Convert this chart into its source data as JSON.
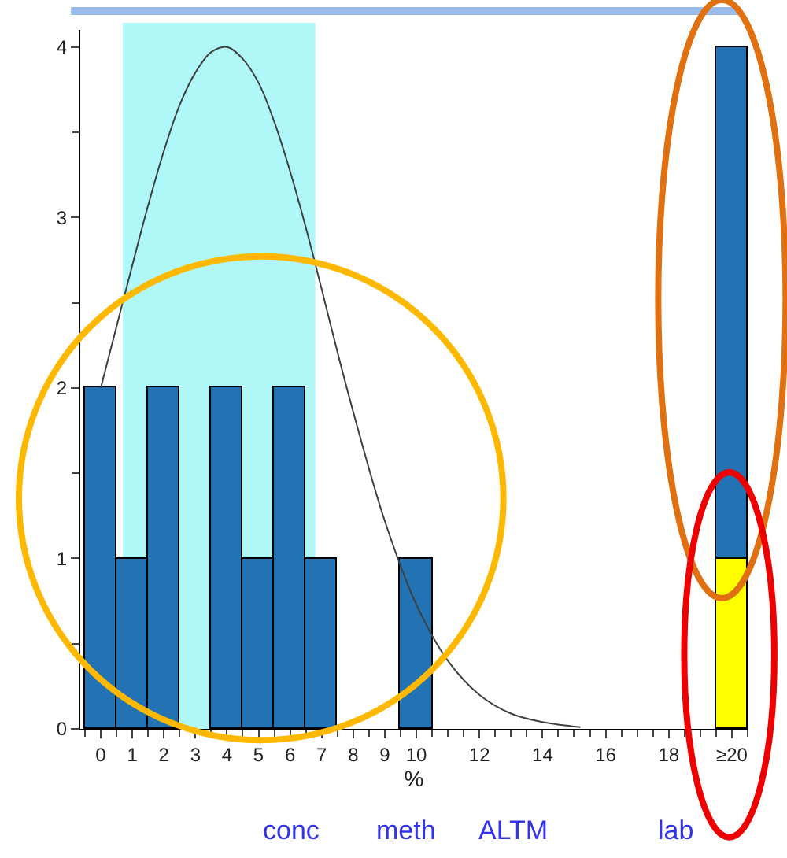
{
  "chart_data": {
    "type": "bar",
    "x": [
      0,
      1,
      2,
      3,
      4,
      5,
      6,
      7,
      8,
      9,
      10,
      20
    ],
    "series": [
      {
        "color": "#ffff00",
        "values": [
          null,
          null,
          null,
          null,
          null,
          null,
          null,
          null,
          null,
          null,
          null,
          1
        ]
      },
      {
        "color": "#2272b4",
        "values": [
          2,
          1,
          2,
          null,
          2,
          1,
          2,
          1,
          null,
          null,
          1,
          3
        ]
      },
      {
        "type": "line",
        "color": "#404040",
        "x": [
          0,
          0.5,
          1,
          1.5,
          2,
          2.5,
          3,
          3.5,
          4,
          4.5,
          5,
          5.5,
          6,
          6.5,
          7,
          7.5,
          8,
          9,
          10,
          11,
          12,
          13,
          14,
          15.2
        ],
        "values": [
          2.0,
          2.36,
          2.72,
          3.07,
          3.39,
          3.66,
          3.85,
          3.97,
          4.0,
          3.93,
          3.79,
          3.56,
          3.27,
          2.94,
          2.58,
          2.21,
          1.86,
          1.22,
          0.73,
          0.4,
          0.2,
          0.09,
          0.04,
          0.01
        ]
      }
    ],
    "stacked": true,
    "xlim": [
      -0.65,
      20.5
    ],
    "xticks": [
      0,
      1,
      2,
      3,
      4,
      5,
      6,
      7,
      8,
      9,
      10,
      12,
      14,
      16,
      18,
      {
        "value": 20,
        "label": "≥20"
      }
    ],
    "ylim": [
      0,
      4.1
    ],
    "yticks": [
      0,
      1,
      2,
      3,
      4
    ],
    "xlabel": "%",
    "bands": [
      {
        "axis": "x",
        "from": 0.7,
        "to": 6.8,
        "color": "#b0f8f8"
      }
    ],
    "annotations": [
      "conc",
      "meth",
      "ALTM",
      "lab"
    ],
    "grid": false,
    "marker": "none",
    "line_style": "solid"
  }
}
